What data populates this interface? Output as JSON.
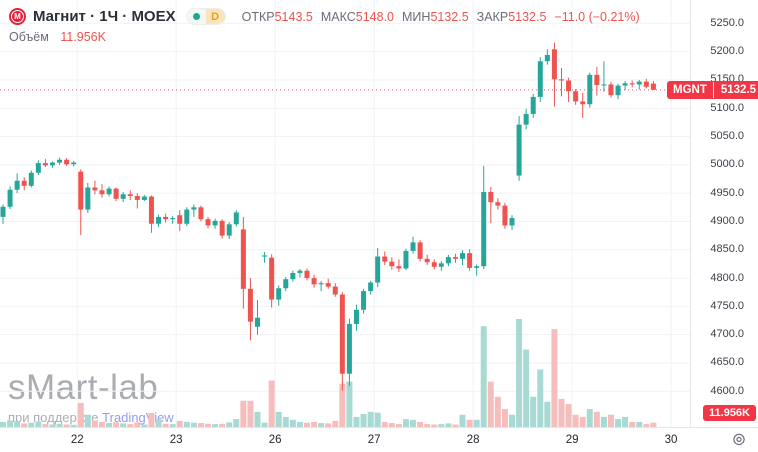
{
  "legend": {
    "title": "Магнит · 1Ч · MOEX",
    "logo_letter": "М",
    "interval_badge": "D",
    "open_label": "ОТКР",
    "open_value": "5143.5",
    "high_label": "МАКС",
    "high_value": "5148.0",
    "low_label": "МИН",
    "low_value": "5132.5",
    "close_label": "ЗАКР",
    "close_value": "5132.5",
    "change": "−11.0 (−0.21%)",
    "volume_label": "Объём",
    "volume_value": "11.956K"
  },
  "price_badge": {
    "symbol": "MGNT",
    "value": "5132.5"
  },
  "volume_badge": {
    "value": "11.956K"
  },
  "watermark": {
    "brand": "sMart-lab",
    "credit_prefix": "при поддержке",
    "credit_brand": "TradingView"
  },
  "colors": {
    "up": "#26a69a",
    "down": "#ef5350",
    "volume_up": "#a8d9d2",
    "volume_down": "#f6bdbd",
    "badge_red": "#f23645",
    "value_red": "#ef5350",
    "grid": "#f0f2f5",
    "axis_text": "#3c3f4a",
    "label_gray": "#6a6d78"
  },
  "chart_data": {
    "type": "candlestick+volume",
    "symbol": "MGNT",
    "name": "Магнит",
    "interval": "1Ч",
    "exchange": "MOEX",
    "last_price": 5132.5,
    "last_volume_k": 11.956,
    "price_axis": {
      "min": 4600,
      "max": 5250,
      "step": 50
    },
    "volume_scale_max_k": 300,
    "day_ticks": [
      {
        "label": "22",
        "index": 11
      },
      {
        "label": "23",
        "index": 25
      },
      {
        "label": "26",
        "index": 39
      },
      {
        "label": "27",
        "index": 53
      },
      {
        "label": "28",
        "index": 67
      },
      {
        "label": "29",
        "index": 81
      },
      {
        "label": "30",
        "index": 95
      }
    ],
    "candles_ohlcv": [
      [
        4908,
        4930,
        4896,
        4926,
        14
      ],
      [
        4926,
        4962,
        4922,
        4956,
        18
      ],
      [
        4956,
        4985,
        4950,
        4972,
        16
      ],
      [
        4972,
        4978,
        4955,
        4963,
        10
      ],
      [
        4963,
        4990,
        4960,
        4986,
        12
      ],
      [
        4986,
        5008,
        4982,
        5003,
        15
      ],
      [
        5003,
        5010,
        4996,
        4999,
        8
      ],
      [
        4999,
        5006,
        4995,
        5004,
        7
      ],
      [
        5004,
        5013,
        5000,
        5009,
        9
      ],
      [
        5009,
        5012,
        4998,
        5001,
        7
      ],
      [
        5001,
        5007,
        4997,
        5004,
        6
      ],
      [
        4988,
        4992,
        4876,
        4921,
        67
      ],
      [
        4921,
        4968,
        4915,
        4960,
        34
      ],
      [
        4960,
        4972,
        4948,
        4955,
        18
      ],
      [
        4955,
        4966,
        4942,
        4948,
        14
      ],
      [
        4948,
        4962,
        4944,
        4958,
        11
      ],
      [
        4958,
        4960,
        4936,
        4940,
        13
      ],
      [
        4940,
        4952,
        4934,
        4948,
        10
      ],
      [
        4948,
        4955,
        4938,
        4945,
        8
      ],
      [
        4945,
        4950,
        4923,
        4938,
        13
      ],
      [
        4938,
        4947,
        4936,
        4944,
        7
      ],
      [
        4944,
        4946,
        4880,
        4896,
        39
      ],
      [
        4896,
        4912,
        4890,
        4908,
        22
      ],
      [
        4908,
        4914,
        4898,
        4904,
        9
      ],
      [
        4904,
        4910,
        4896,
        4906,
        8
      ],
      [
        4911,
        4920,
        4883,
        4896,
        17
      ],
      [
        4896,
        4925,
        4892,
        4921,
        14
      ],
      [
        4921,
        4930,
        4908,
        4925,
        12
      ],
      [
        4925,
        4928,
        4900,
        4904,
        11
      ],
      [
        4904,
        4908,
        4888,
        4893,
        9
      ],
      [
        4893,
        4905,
        4887,
        4901,
        8
      ],
      [
        4901,
        4904,
        4870,
        4875,
        9
      ],
      [
        4875,
        4899,
        4869,
        4895,
        13
      ],
      [
        4895,
        4920,
        4891,
        4916,
        22
      ],
      [
        4886,
        4908,
        4746,
        4781,
        73
      ],
      [
        4781,
        4800,
        4690,
        4723,
        73
      ],
      [
        4714,
        4761,
        4700,
        4730,
        42
      ],
      [
        4838,
        4846,
        4827,
        4840,
        12
      ],
      [
        4836,
        4842,
        4748,
        4762,
        129
      ],
      [
        4762,
        4787,
        4751,
        4782,
        42
      ],
      [
        4782,
        4802,
        4777,
        4798,
        28
      ],
      [
        4798,
        4813,
        4794,
        4809,
        20
      ],
      [
        4809,
        4816,
        4801,
        4813,
        14
      ],
      [
        4813,
        4817,
        4796,
        4800,
        12
      ],
      [
        4800,
        4806,
        4783,
        4789,
        14
      ],
      [
        4789,
        4795,
        4777,
        4791,
        11
      ],
      [
        4791,
        4799,
        4781,
        4785,
        10
      ],
      [
        4785,
        4791,
        4767,
        4771,
        17
      ],
      [
        4771,
        4775,
        4601,
        4631,
        120
      ],
      [
        4631,
        4728,
        4609,
        4719,
        126
      ],
      [
        4719,
        4753,
        4707,
        4744,
        28
      ],
      [
        4744,
        4781,
        4737,
        4777,
        36
      ],
      [
        4777,
        4795,
        4771,
        4792,
        42
      ],
      [
        4792,
        4853,
        4784,
        4838,
        40
      ],
      [
        4838,
        4847,
        4823,
        4829,
        14
      ],
      [
        4829,
        4837,
        4815,
        4821,
        11
      ],
      [
        4821,
        4833,
        4811,
        4817,
        8
      ],
      [
        4817,
        4852,
        4814,
        4848,
        22
      ],
      [
        4848,
        4873,
        4843,
        4863,
        20
      ],
      [
        4863,
        4867,
        4829,
        4834,
        14
      ],
      [
        4834,
        4841,
        4823,
        4828,
        8
      ],
      [
        4828,
        4833,
        4815,
        4820,
        7
      ],
      [
        4820,
        4830,
        4813,
        4826,
        8
      ],
      [
        4826,
        4841,
        4821,
        4837,
        10
      ],
      [
        4837,
        4843,
        4827,
        4834,
        7
      ],
      [
        4834,
        4849,
        4823,
        4844,
        34
      ],
      [
        4844,
        4851,
        4813,
        4818,
        20
      ],
      [
        4818,
        4824,
        4804,
        4821,
        20
      ],
      [
        4821,
        4998,
        4816,
        4952,
        280
      ],
      [
        4952,
        4961,
        4897,
        4934,
        126
      ],
      [
        4934,
        4941,
        4921,
        4928,
        84
      ],
      [
        4928,
        4933,
        4887,
        4893,
        50
      ],
      [
        4893,
        4911,
        4885,
        4906,
        34
      ],
      [
        4981,
        5086,
        4972,
        5071,
        300
      ],
      [
        5071,
        5099,
        5063,
        5090,
        215
      ],
      [
        5090,
        5125,
        5083,
        5120,
        84
      ],
      [
        5120,
        5190,
        5111,
        5183,
        160
      ],
      [
        5183,
        5204,
        5177,
        5194,
        70
      ],
      [
        5204,
        5216,
        5103,
        5151,
        272
      ],
      [
        5151,
        5171,
        5121,
        5149,
        78
      ],
      [
        5149,
        5154,
        5111,
        5130,
        64
      ],
      [
        5130,
        5134,
        5106,
        5112,
        34
      ],
      [
        5112,
        5127,
        5083,
        5107,
        28
      ],
      [
        5107,
        5163,
        5101,
        5159,
        50
      ],
      [
        5159,
        5173,
        5122,
        5141,
        42
      ],
      [
        5141,
        5183,
        5129,
        5142,
        28
      ],
      [
        5142,
        5147,
        5119,
        5123,
        34
      ],
      [
        5123,
        5143,
        5116,
        5140,
        22
      ],
      [
        5140,
        5148,
        5132,
        5144,
        28
      ],
      [
        5144,
        5149,
        5137,
        5142,
        14
      ],
      [
        5142,
        5150,
        5133,
        5147,
        14
      ],
      [
        5147,
        5152,
        5135,
        5138,
        8
      ],
      [
        5143.5,
        5148,
        5132.5,
        5132.5,
        11.956
      ]
    ]
  }
}
